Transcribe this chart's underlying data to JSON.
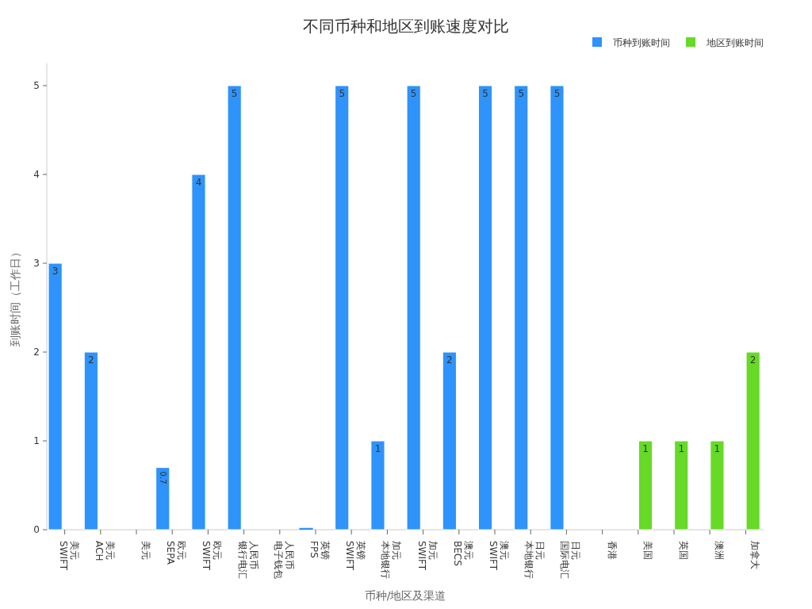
{
  "chart_data": {
    "type": "bar",
    "title": "不同币种和地区到账速度对比",
    "xlabel": "币种/地区及渠道",
    "ylabel": "到账时间（工作日）",
    "categories": [
      "美元\nSWIFT",
      "美元\nACH",
      "美元",
      "欧元\nSEPA",
      "欧元\nSWIFT",
      "人民币银行电汇",
      "人民币电子钱包",
      "英镑\nFPS",
      "英镑\nSWIFT",
      "加元本地银行",
      "加元\nSWIFT",
      "澳元\nBECS",
      "澳元\nSWIFT",
      "日元本地银行",
      "日元国际电汇",
      "香港",
      "美国",
      "英国",
      "澳洲",
      "加拿大"
    ],
    "series": [
      {
        "name": "币种到账时间",
        "color": "#2e93fa",
        "values": [
          3,
          2,
          null,
          0.7,
          4,
          5,
          null,
          0.02,
          5,
          1,
          5,
          2,
          5,
          5,
          5,
          null,
          null,
          null,
          null,
          null
        ],
        "value_labels": [
          "3",
          "2",
          null,
          "0.7",
          "4",
          "5",
          null,
          null,
          "5",
          "1",
          "5",
          "2",
          "5",
          "5",
          "5",
          null,
          null,
          null,
          null,
          null
        ]
      },
      {
        "name": "地区到账时间",
        "color": "#66da26",
        "values": [
          null,
          null,
          null,
          null,
          null,
          null,
          null,
          null,
          null,
          null,
          null,
          null,
          null,
          null,
          null,
          null,
          1,
          1,
          1,
          2
        ],
        "value_labels": [
          null,
          null,
          null,
          null,
          null,
          null,
          null,
          null,
          null,
          null,
          null,
          null,
          null,
          null,
          null,
          null,
          "1",
          "1",
          "1",
          "2"
        ]
      }
    ],
    "ylim": [
      0,
      5.25
    ],
    "yticks": [
      0,
      1,
      2,
      3,
      4,
      5
    ],
    "grid": false,
    "legend": "top right"
  }
}
